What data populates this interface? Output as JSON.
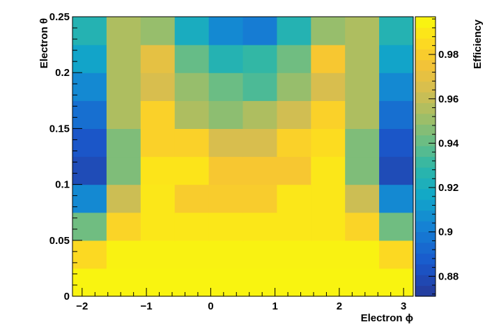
{
  "chart_data": {
    "type": "heatmap",
    "xlabel": "Electron ϕ",
    "ylabel": "Electron θ",
    "zlabel": "Efficiency",
    "xlim": [
      -2.15,
      3.15
    ],
    "ylim": [
      0,
      0.25
    ],
    "zlim": [
      0.871,
      0.997
    ],
    "x_bin_edges": [
      -2.15,
      -1.62,
      -1.09,
      -0.56,
      -0.03,
      0.5,
      1.03,
      1.56,
      2.09,
      2.62,
      3.15
    ],
    "y_bin_edges": [
      0,
      0.025,
      0.05,
      0.075,
      0.1,
      0.125,
      0.15,
      0.175,
      0.2,
      0.225,
      0.25
    ],
    "x_ticks": [
      -2,
      -1,
      0,
      1,
      2,
      3
    ],
    "x_tick_labels": [
      "−2",
      "−1",
      "0",
      "1",
      "2",
      "3"
    ],
    "y_ticks": [
      0,
      0.05,
      0.1,
      0.15,
      0.2,
      0.25
    ],
    "y_tick_labels": [
      "0",
      "0.05",
      "0.1",
      "0.15",
      "0.2",
      "0.25"
    ],
    "z_ticks": [
      0.88,
      0.9,
      0.92,
      0.94,
      0.96,
      0.98
    ],
    "z_tick_labels": [
      "0.88",
      "0.9",
      "0.92",
      "0.94",
      "0.96",
      "0.98"
    ],
    "values": [
      [
        0.995,
        0.995,
        0.995,
        0.995,
        0.995,
        0.995,
        0.995,
        0.995,
        0.995,
        0.995
      ],
      [
        0.985,
        0.994,
        0.994,
        0.994,
        0.994,
        0.994,
        0.994,
        0.994,
        0.994,
        0.985
      ],
      [
        0.942,
        0.983,
        0.99,
        0.99,
        0.99,
        0.99,
        0.99,
        0.99,
        0.983,
        0.942
      ],
      [
        0.905,
        0.962,
        0.99,
        0.98,
        0.98,
        0.98,
        0.99,
        0.99,
        0.962,
        0.905
      ],
      [
        0.88,
        0.945,
        0.989,
        0.989,
        0.978,
        0.978,
        0.978,
        0.99,
        0.945,
        0.88
      ],
      [
        0.885,
        0.945,
        0.982,
        0.982,
        0.965,
        0.965,
        0.982,
        0.986,
        0.945,
        0.885
      ],
      [
        0.895,
        0.955,
        0.982,
        0.955,
        0.948,
        0.955,
        0.963,
        0.982,
        0.955,
        0.895
      ],
      [
        0.905,
        0.955,
        0.965,
        0.95,
        0.941,
        0.935,
        0.95,
        0.965,
        0.955,
        0.905
      ],
      [
        0.915,
        0.955,
        0.97,
        0.94,
        0.925,
        0.93,
        0.942,
        0.978,
        0.955,
        0.915
      ],
      [
        0.925,
        0.955,
        0.95,
        0.92,
        0.905,
        0.9,
        0.925,
        0.95,
        0.955,
        0.925
      ]
    ]
  }
}
